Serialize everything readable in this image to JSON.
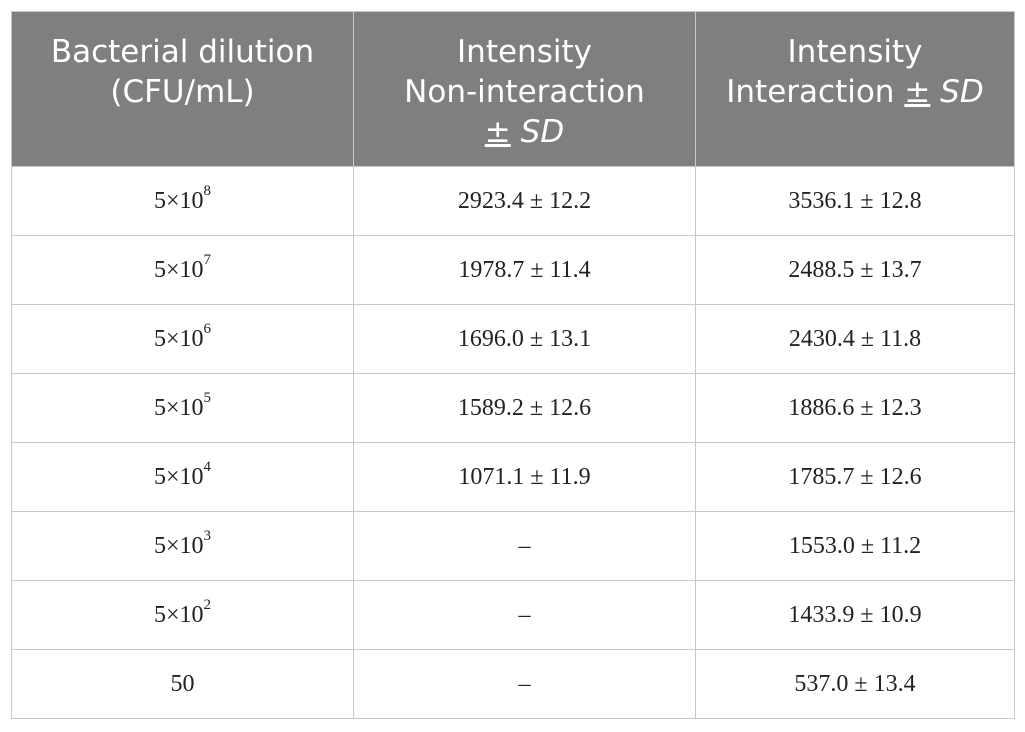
{
  "table": {
    "columns": [
      [
        "Bacterial dilution",
        "(CFU/mL)"
      ],
      [
        "Intensity",
        "Non-interaction",
        "±",
        "SD"
      ],
      [
        "Intensity",
        "Interaction",
        "±",
        "SD"
      ]
    ],
    "rows": [
      [
        {
          "base": "5×10",
          "exp": "8"
        },
        "2923.4 ± 12.2",
        "3536.1 ± 12.8"
      ],
      [
        {
          "base": "5×10",
          "exp": "7"
        },
        "1978.7 ± 11.4",
        "2488.5 ± 13.7"
      ],
      [
        {
          "base": "5×10",
          "exp": "6"
        },
        "1696.0 ± 13.1",
        "2430.4 ± 11.8"
      ],
      [
        {
          "base": "5×10",
          "exp": "5"
        },
        "1589.2 ± 12.6",
        "1886.6 ± 12.3"
      ],
      [
        {
          "base": "5×10",
          "exp": "4"
        },
        "1071.1 ± 11.9",
        "1785.7 ± 12.6"
      ],
      [
        {
          "base": "5×10",
          "exp": "3"
        },
        "–",
        "1553.0 ± 11.2"
      ],
      [
        {
          "base": "5×10",
          "exp": "2"
        },
        "–",
        "1433.9 ± 10.9"
      ],
      [
        "50",
        "–",
        "537.0 ± 13.4"
      ]
    ]
  }
}
